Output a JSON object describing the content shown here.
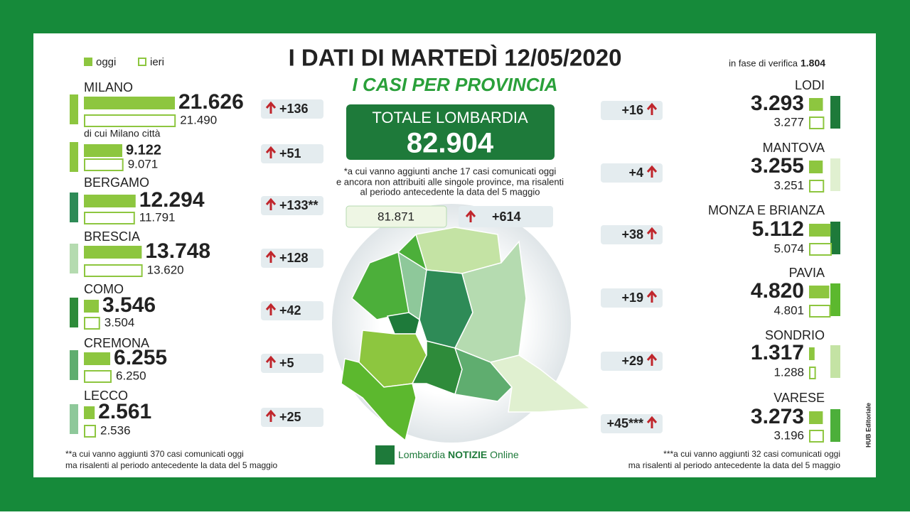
{
  "header": {
    "title": "I DATI DI MARTEDÌ 12/05/2020",
    "subtitle": "I CASI PER PROVINCIA",
    "legend": [
      "oggi",
      "ieri"
    ],
    "verification_label": "in fase di verifica",
    "verification_value": "1.804"
  },
  "total": {
    "label": "TOTALE LOMBARDIA",
    "value": "82.904",
    "previous": "81.871",
    "delta": "+614",
    "note": [
      "*a cui vanno aggiunti anche 17 casi comunicati oggi",
      "e ancora non attribuiti alle singole province, ma risalenti",
      "al periodo antecedente la data del 5 maggio"
    ]
  },
  "left": [
    {
      "name": "MILANO",
      "today": "21.626",
      "yesterday": "21.490",
      "delta": "+136",
      "color": "#8dc63f"
    },
    {
      "name": "di cui Milano città",
      "today": "9.122",
      "yesterday": "9.071",
      "delta": "+51",
      "color": "#8dc63f"
    },
    {
      "name": "BERGAMO",
      "today": "12.294",
      "yesterday": "11.791",
      "delta": "+133**",
      "color": "#2e8b57"
    },
    {
      "name": "BRESCIA",
      "today": "13.748",
      "yesterday": "13.620",
      "delta": "+128",
      "color": "#b5dbb0"
    },
    {
      "name": "COMO",
      "today": "3.546",
      "yesterday": "3.504",
      "delta": "+42",
      "color": "#2e8b3a"
    },
    {
      "name": "CREMONA",
      "today": "6.255",
      "yesterday": "6.250",
      "delta": "+5",
      "color": "#5fad6f"
    },
    {
      "name": "LECCO",
      "today": "2.561",
      "yesterday": "2.536",
      "delta": "+25",
      "color": "#8ec89a"
    }
  ],
  "right": [
    {
      "name": "LODI",
      "today": "3.293",
      "yesterday": "3.277",
      "delta": "+16",
      "color": "#1e7a3a"
    },
    {
      "name": "MANTOVA",
      "today": "3.255",
      "yesterday": "3.251",
      "delta": "+4",
      "color": "#e0f0d0"
    },
    {
      "name": "MONZA E BRIANZA",
      "today": "5.112",
      "yesterday": "5.074",
      "delta": "+38",
      "color": "#1e7a3a"
    },
    {
      "name": "PAVIA",
      "today": "4.820",
      "yesterday": "4.801",
      "delta": "+19",
      "color": "#5cb82e"
    },
    {
      "name": "SONDRIO",
      "today": "1.317",
      "yesterday": "1.288",
      "delta": "+29",
      "color": "#c4e3a4"
    },
    {
      "name": "VARESE",
      "today": "3.273",
      "yesterday": "3.196",
      "delta": "+45***",
      "color": "#4caf3a"
    }
  ],
  "footnotes": {
    "left": [
      "**a cui vanno aggiunti 370 casi comunicati oggi",
      "ma risalenti al periodo antecedente la data del 5 maggio"
    ],
    "right": [
      "***a cui vanno aggiunti 32 casi comunicati oggi",
      "ma risalenti al periodo antecedente la data del 5 maggio"
    ]
  },
  "logo": {
    "prefix": "Lombardia",
    "brand": "NOTIZIE",
    "suffix": "Online"
  },
  "credit": "HUB Editoriale"
}
